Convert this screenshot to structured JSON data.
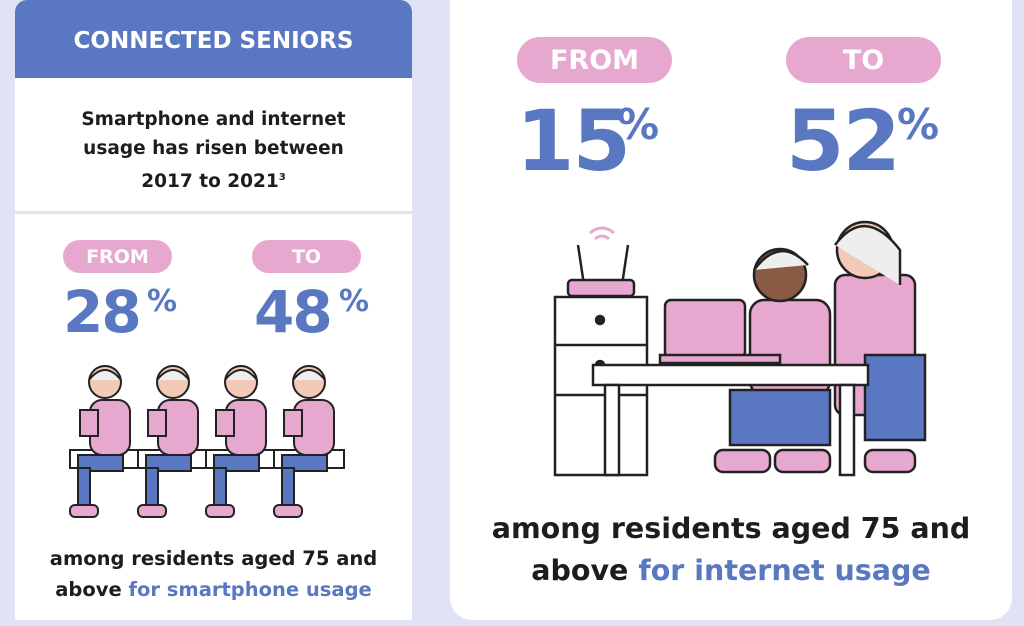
{
  "left_panel": {
    "header": "CONNECTED SENIORS",
    "intro": "Smartphone and internet usage has risen between 2017 to 2021",
    "footnote": "3",
    "from": {
      "label": "FROM",
      "number": "28",
      "unit": "%"
    },
    "to": {
      "label": "TO",
      "number": "48",
      "unit": "%"
    },
    "caption": "among residents aged 75 and above",
    "caption_highlight": "for smartphone usage"
  },
  "right_panel": {
    "from": {
      "label": "FROM",
      "number": "15",
      "unit": "%"
    },
    "to": {
      "label": "TO",
      "number": "52",
      "unit": "%"
    },
    "caption": "among residents aged 75 and above",
    "caption_highlight": "for internet usage"
  }
}
